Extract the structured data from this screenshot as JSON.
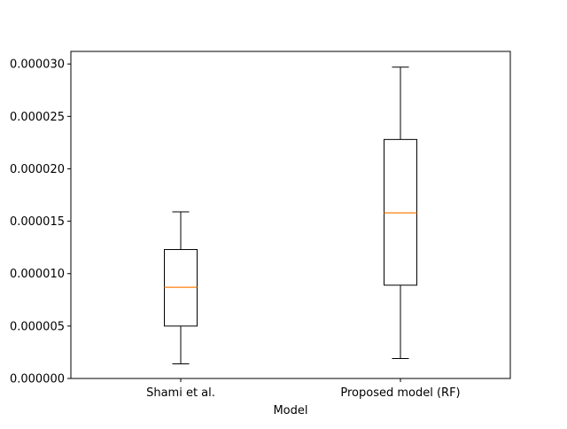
{
  "chart_data": {
    "type": "box",
    "title": "",
    "xlabel": "Model",
    "ylabel": "",
    "ylim": [
      0,
      3.12e-05
    ],
    "y_ticks": [
      0,
      5e-06,
      1e-05,
      1.5e-05,
      2e-05,
      2.5e-05,
      3e-05
    ],
    "y_tick_labels": [
      "0.000000",
      "0.000005",
      "0.000010",
      "0.000015",
      "0.000020",
      "0.000025",
      "0.000030"
    ],
    "grid": false,
    "categories": [
      "Shami et al.",
      "Proposed model (RF)"
    ],
    "boxes": [
      {
        "category": "Shami et al.",
        "whisker_low": 1.4e-06,
        "q1": 5e-06,
        "median": 8.7e-06,
        "q3": 1.23e-05,
        "whisker_high": 1.59e-05
      },
      {
        "category": "Proposed model (RF)",
        "whisker_low": 1.9e-06,
        "q1": 8.9e-06,
        "median": 1.58e-05,
        "q3": 2.28e-05,
        "whisker_high": 2.97e-05
      }
    ],
    "colors": {
      "box": "#000000",
      "median": "#ff7f0e",
      "whisker": "#000000"
    }
  }
}
